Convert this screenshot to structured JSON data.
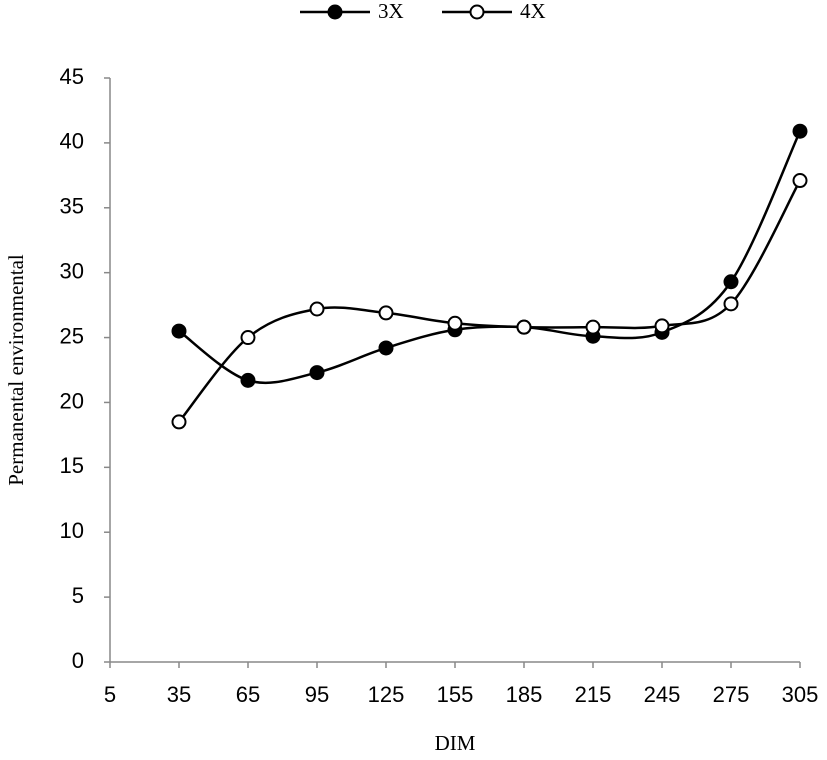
{
  "chart_data": {
    "type": "line",
    "x": [
      35,
      65,
      95,
      125,
      155,
      185,
      215,
      245,
      275,
      305
    ],
    "series": [
      {
        "name": "3X",
        "color": "#000000",
        "marker": "filled",
        "values": [
          25.5,
          21.7,
          22.3,
          24.2,
          25.6,
          25.8,
          25.1,
          25.4,
          29.3,
          40.9
        ]
      },
      {
        "name": "4X",
        "color": "#000000",
        "marker": "open",
        "values": [
          18.5,
          25.0,
          27.2,
          26.9,
          26.1,
          25.8,
          25.8,
          25.9,
          27.6,
          37.1
        ]
      }
    ],
    "xlabel": "DIM",
    "ylabel": "Permanental environmental",
    "xlim": [
      5,
      305
    ],
    "xticks": [
      5,
      35,
      65,
      95,
      125,
      155,
      185,
      215,
      245,
      275,
      305
    ],
    "ylim": [
      0,
      45
    ],
    "yticks": [
      0,
      5,
      10,
      15,
      20,
      25,
      30,
      35,
      40,
      45
    ],
    "legend": "top",
    "smooth": true
  }
}
